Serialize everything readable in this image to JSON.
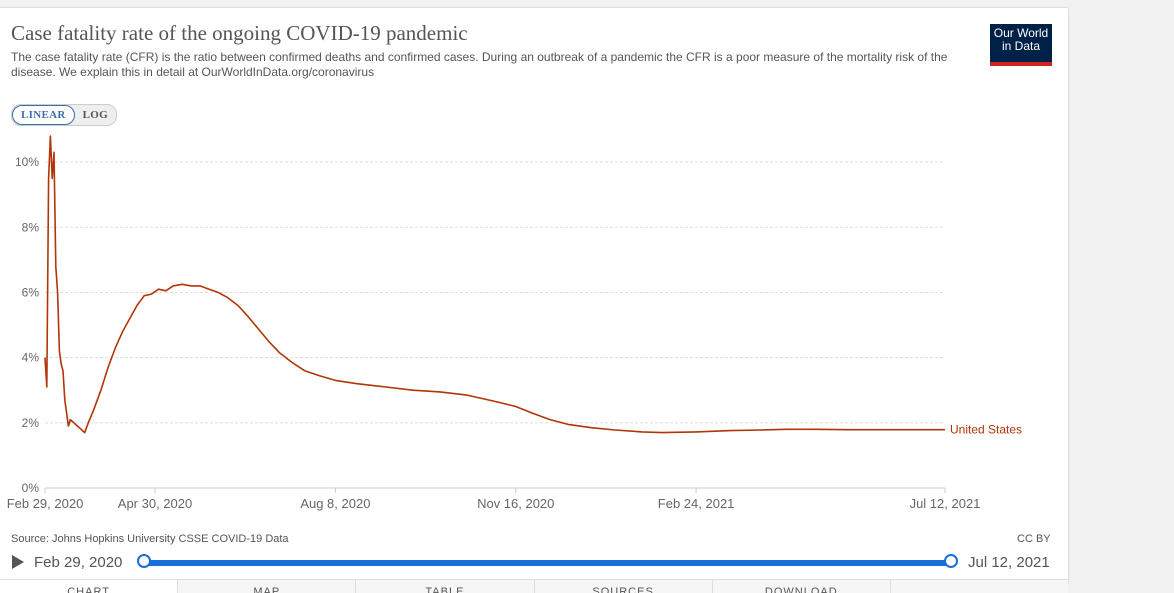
{
  "title": "Case fatality rate of the ongoing COVID-19 pandemic",
  "subtitle": "The case fatality rate (CFR) is the ratio between confirmed deaths and confirmed cases. During an outbreak of a pandemic the CFR is a poor measure of the mortality risk of the disease. We explain this in detail at OurWorldInData.org/coronavirus",
  "logo": {
    "line1": "Our World",
    "line2": "in Data"
  },
  "scale_toggle": {
    "linear_label": "LINEAR",
    "log_label": "LOG",
    "active": "linear"
  },
  "source": "Source: Johns Hopkins University CSSE COVID-19 Data",
  "license": "CC BY",
  "timeline": {
    "start_label": "Feb 29, 2020",
    "end_label": "Jul 12, 2021"
  },
  "tabs": [
    "Chart",
    "Map",
    "Table",
    "Sources",
    "Download",
    ""
  ],
  "colors": {
    "series": "#b13507",
    "grid": "#dddddd",
    "slider": "#1a6ed8"
  },
  "chart_data": {
    "type": "line",
    "title": "Case fatality rate of the ongoing COVID-19 pandemic",
    "ylabel": "",
    "xlabel": "",
    "y_unit": "%",
    "ylim": [
      0,
      10.8
    ],
    "y_ticks": [
      0,
      2,
      4,
      6,
      8,
      10
    ],
    "y_tick_labels": [
      "0%",
      "2%",
      "4%",
      "6%",
      "8%",
      "10%"
    ],
    "x_range": [
      "2020-02-29",
      "2021-07-12"
    ],
    "x_ticks": [
      "2020-02-29",
      "2020-04-30",
      "2020-08-08",
      "2020-11-16",
      "2021-02-24",
      "2021-07-12"
    ],
    "x_tick_labels": [
      "Feb 29, 2020",
      "Apr 30, 2020",
      "Aug 8, 2020",
      "Nov 16, 2020",
      "Feb 24, 2021",
      "Jul 12, 2021"
    ],
    "grid": "horizontal-dashed",
    "legend": "inline-end-label",
    "series": [
      {
        "name": "United States",
        "color": "#b13507",
        "points": [
          [
            "2020-02-29",
            4.0
          ],
          [
            "2020-03-01",
            3.1
          ],
          [
            "2020-03-02",
            9.5
          ],
          [
            "2020-03-03",
            10.8
          ],
          [
            "2020-03-04",
            9.5
          ],
          [
            "2020-03-05",
            10.3
          ],
          [
            "2020-03-06",
            6.8
          ],
          [
            "2020-03-07",
            6.0
          ],
          [
            "2020-03-08",
            4.2
          ],
          [
            "2020-03-09",
            3.8
          ],
          [
            "2020-03-10",
            3.6
          ],
          [
            "2020-03-11",
            2.7
          ],
          [
            "2020-03-12",
            2.3
          ],
          [
            "2020-03-13",
            1.9
          ],
          [
            "2020-03-14",
            2.1
          ],
          [
            "2020-03-16",
            2.0
          ],
          [
            "2020-03-18",
            1.9
          ],
          [
            "2020-03-20",
            1.8
          ],
          [
            "2020-03-22",
            1.7
          ],
          [
            "2020-03-24",
            2.0
          ],
          [
            "2020-03-27",
            2.4
          ],
          [
            "2020-03-31",
            3.0
          ],
          [
            "2020-04-04",
            3.7
          ],
          [
            "2020-04-08",
            4.3
          ],
          [
            "2020-04-12",
            4.8
          ],
          [
            "2020-04-16",
            5.2
          ],
          [
            "2020-04-20",
            5.6
          ],
          [
            "2020-04-24",
            5.9
          ],
          [
            "2020-04-28",
            5.95
          ],
          [
            "2020-05-02",
            6.1
          ],
          [
            "2020-05-06",
            6.05
          ],
          [
            "2020-05-10",
            6.2
          ],
          [
            "2020-05-15",
            6.25
          ],
          [
            "2020-05-20",
            6.2
          ],
          [
            "2020-05-25",
            6.2
          ],
          [
            "2020-05-30",
            6.1
          ],
          [
            "2020-06-04",
            6.0
          ],
          [
            "2020-06-09",
            5.85
          ],
          [
            "2020-06-15",
            5.6
          ],
          [
            "2020-06-20",
            5.3
          ],
          [
            "2020-06-26",
            4.9
          ],
          [
            "2020-07-02",
            4.5
          ],
          [
            "2020-07-08",
            4.15
          ],
          [
            "2020-07-15",
            3.85
          ],
          [
            "2020-07-22",
            3.6
          ],
          [
            "2020-07-30",
            3.45
          ],
          [
            "2020-08-08",
            3.3
          ],
          [
            "2020-08-20",
            3.2
          ],
          [
            "2020-09-05",
            3.1
          ],
          [
            "2020-09-20",
            3.0
          ],
          [
            "2020-10-05",
            2.95
          ],
          [
            "2020-10-20",
            2.85
          ],
          [
            "2020-11-05",
            2.65
          ],
          [
            "2020-11-16",
            2.5
          ],
          [
            "2020-11-25",
            2.3
          ],
          [
            "2020-12-05",
            2.1
          ],
          [
            "2020-12-15",
            1.95
          ],
          [
            "2020-12-28",
            1.85
          ],
          [
            "2021-01-10",
            1.78
          ],
          [
            "2021-01-25",
            1.72
          ],
          [
            "2021-02-05",
            1.7
          ],
          [
            "2021-02-24",
            1.72
          ],
          [
            "2021-03-15",
            1.76
          ],
          [
            "2021-04-01",
            1.78
          ],
          [
            "2021-04-15",
            1.8
          ],
          [
            "2021-05-01",
            1.8
          ],
          [
            "2021-05-20",
            1.79
          ],
          [
            "2021-06-05",
            1.79
          ],
          [
            "2021-06-20",
            1.79
          ],
          [
            "2021-07-12",
            1.79
          ]
        ]
      }
    ]
  }
}
